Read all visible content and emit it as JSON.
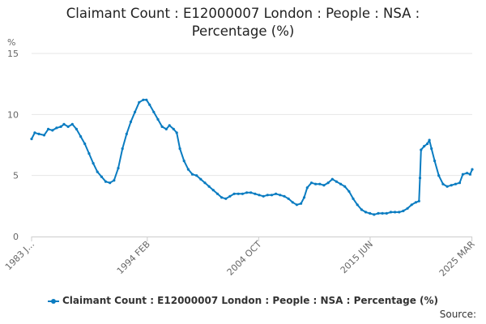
{
  "title_line1": "Claimant Count : E12000007 London : People : NSA :",
  "title_line2": "Percentage (%)",
  "source_label": "Source:",
  "colors": {
    "series": "#0a7cc1",
    "grid": "#e6e6e6",
    "axis": "#cccccc",
    "text": "#666666"
  },
  "chart_data": {
    "type": "line",
    "title": "Claimant Count : E12000007 London : People : NSA : Percentage (%)",
    "ylabel": "%",
    "xlabel": "",
    "ylim": [
      0,
      15
    ],
    "yticks": [
      0,
      5,
      10,
      15
    ],
    "xlim": [
      1983.0,
      2025.2
    ],
    "xticks": [
      {
        "x": 1983.0,
        "label": "1983 J..."
      },
      {
        "x": 1994.08,
        "label": "1994 FEB"
      },
      {
        "x": 2004.75,
        "label": "2004 OCT"
      },
      {
        "x": 2015.42,
        "label": "2015 JUN"
      },
      {
        "x": 2025.17,
        "label": "2025 MAR"
      }
    ],
    "grid": "horizontal",
    "legend": "bottom",
    "series": [
      {
        "name": "Claimant Count : E12000007 London : People : NSA : Percentage (%)",
        "points": [
          [
            1983.0,
            8.0
          ],
          [
            1983.3,
            8.5
          ],
          [
            1983.7,
            8.4
          ],
          [
            1984.2,
            8.3
          ],
          [
            1984.6,
            8.8
          ],
          [
            1985.0,
            8.7
          ],
          [
            1985.4,
            8.9
          ],
          [
            1985.8,
            9.0
          ],
          [
            1986.1,
            9.2
          ],
          [
            1986.5,
            9.0
          ],
          [
            1986.9,
            9.2
          ],
          [
            1987.3,
            8.8
          ],
          [
            1987.7,
            8.2
          ],
          [
            1988.1,
            7.6
          ],
          [
            1988.5,
            6.8
          ],
          [
            1988.9,
            6.0
          ],
          [
            1989.3,
            5.3
          ],
          [
            1989.7,
            4.9
          ],
          [
            1990.1,
            4.5
          ],
          [
            1990.5,
            4.4
          ],
          [
            1990.9,
            4.6
          ],
          [
            1991.3,
            5.6
          ],
          [
            1991.7,
            7.2
          ],
          [
            1992.1,
            8.4
          ],
          [
            1992.5,
            9.4
          ],
          [
            1992.9,
            10.2
          ],
          [
            1993.3,
            11.0
          ],
          [
            1993.7,
            11.2
          ],
          [
            1994.0,
            11.2
          ],
          [
            1994.3,
            10.8
          ],
          [
            1994.7,
            10.2
          ],
          [
            1995.1,
            9.6
          ],
          [
            1995.5,
            9.0
          ],
          [
            1995.9,
            8.8
          ],
          [
            1996.2,
            9.1
          ],
          [
            1996.6,
            8.8
          ],
          [
            1996.9,
            8.5
          ],
          [
            1997.2,
            7.2
          ],
          [
            1997.6,
            6.2
          ],
          [
            1998.0,
            5.5
          ],
          [
            1998.4,
            5.1
          ],
          [
            1998.8,
            5.0
          ],
          [
            1999.2,
            4.7
          ],
          [
            1999.6,
            4.4
          ],
          [
            2000.0,
            4.1
          ],
          [
            2000.4,
            3.8
          ],
          [
            2000.8,
            3.5
          ],
          [
            2001.2,
            3.2
          ],
          [
            2001.6,
            3.1
          ],
          [
            2002.0,
            3.3
          ],
          [
            2002.4,
            3.5
          ],
          [
            2002.8,
            3.5
          ],
          [
            2003.2,
            3.5
          ],
          [
            2003.6,
            3.6
          ],
          [
            2004.0,
            3.6
          ],
          [
            2004.4,
            3.5
          ],
          [
            2004.8,
            3.4
          ],
          [
            2005.2,
            3.3
          ],
          [
            2005.6,
            3.4
          ],
          [
            2006.0,
            3.4
          ],
          [
            2006.4,
            3.5
          ],
          [
            2006.8,
            3.4
          ],
          [
            2007.2,
            3.3
          ],
          [
            2007.6,
            3.1
          ],
          [
            2008.0,
            2.8
          ],
          [
            2008.4,
            2.6
          ],
          [
            2008.8,
            2.7
          ],
          [
            2009.1,
            3.2
          ],
          [
            2009.4,
            4.0
          ],
          [
            2009.8,
            4.4
          ],
          [
            2010.2,
            4.3
          ],
          [
            2010.6,
            4.3
          ],
          [
            2011.0,
            4.2
          ],
          [
            2011.4,
            4.4
          ],
          [
            2011.8,
            4.7
          ],
          [
            2012.2,
            4.5
          ],
          [
            2012.6,
            4.3
          ],
          [
            2013.0,
            4.1
          ],
          [
            2013.4,
            3.7
          ],
          [
            2013.8,
            3.1
          ],
          [
            2014.2,
            2.6
          ],
          [
            2014.6,
            2.2
          ],
          [
            2015.0,
            2.0
          ],
          [
            2015.4,
            1.9
          ],
          [
            2015.8,
            1.8
          ],
          [
            2016.2,
            1.9
          ],
          [
            2016.6,
            1.9
          ],
          [
            2017.0,
            1.9
          ],
          [
            2017.4,
            2.0
          ],
          [
            2017.8,
            2.0
          ],
          [
            2018.2,
            2.0
          ],
          [
            2018.6,
            2.1
          ],
          [
            2019.0,
            2.3
          ],
          [
            2019.4,
            2.6
          ],
          [
            2019.8,
            2.8
          ],
          [
            2020.1,
            2.9
          ],
          [
            2020.2,
            4.8
          ],
          [
            2020.3,
            7.1
          ],
          [
            2020.6,
            7.4
          ],
          [
            2020.9,
            7.6
          ],
          [
            2021.1,
            7.9
          ],
          [
            2021.3,
            7.2
          ],
          [
            2021.6,
            6.2
          ],
          [
            2022.0,
            5.0
          ],
          [
            2022.4,
            4.3
          ],
          [
            2022.8,
            4.1
          ],
          [
            2023.2,
            4.2
          ],
          [
            2023.6,
            4.3
          ],
          [
            2024.0,
            4.4
          ],
          [
            2024.3,
            5.1
          ],
          [
            2024.7,
            5.2
          ],
          [
            2025.0,
            5.1
          ],
          [
            2025.2,
            5.5
          ]
        ]
      }
    ]
  }
}
